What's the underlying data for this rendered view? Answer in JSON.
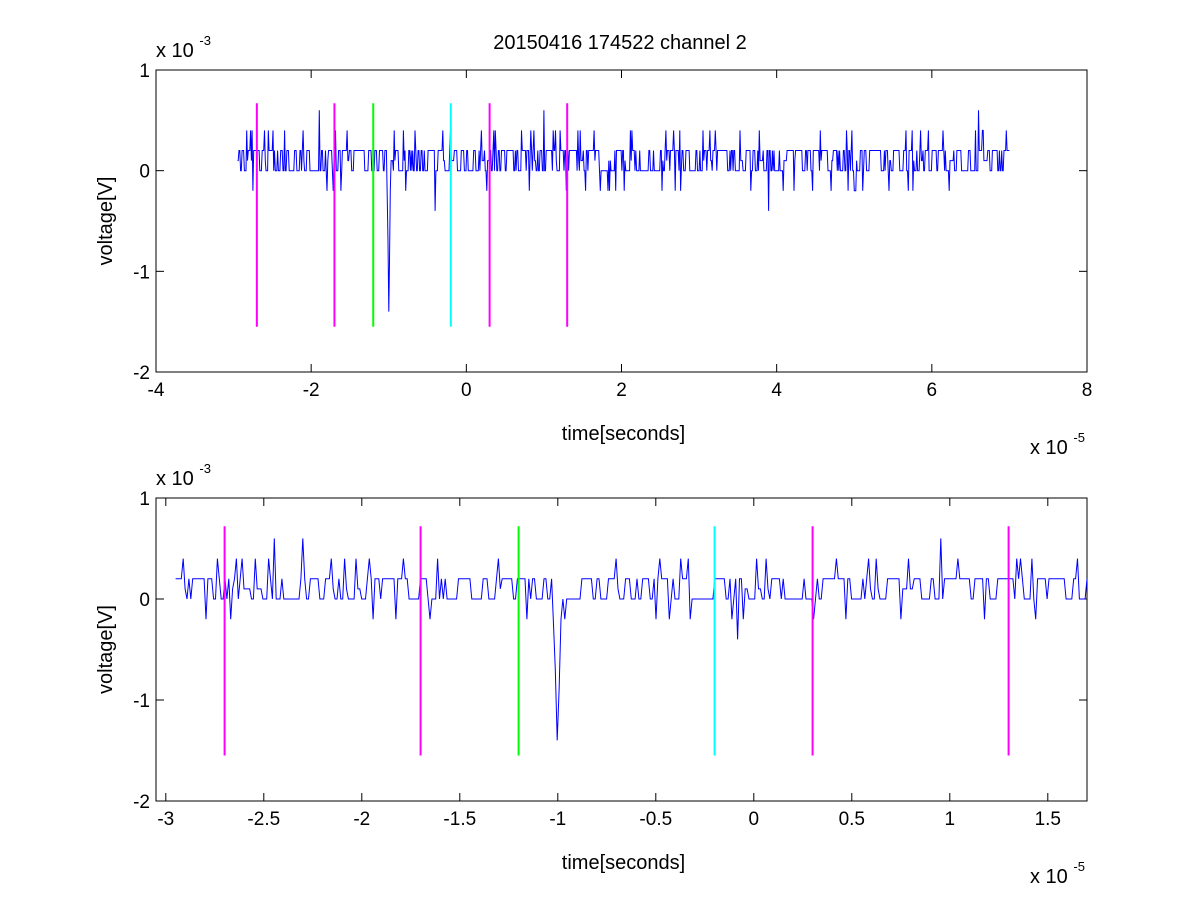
{
  "figure_title": "20150416 174522 channel 2",
  "chart_data": [
    {
      "type": "line",
      "title": "20150416 174522 channel 2",
      "xlabel": "time[seconds]",
      "ylabel": "voltage[V]",
      "x_exponent_label": "x 10",
      "x_exponent": "-5",
      "y_exponent_label": "x 10",
      "y_exponent": "-3",
      "xlim": [
        -4,
        8
      ],
      "ylim": [
        -2,
        1
      ],
      "xticks": [
        -4,
        -2,
        0,
        2,
        4,
        6,
        8
      ],
      "xtick_labels": [
        "-4",
        "-2",
        "0",
        "2",
        "4",
        "6",
        "8"
      ],
      "yticks": [
        -2,
        -1,
        0,
        1
      ],
      "ytick_labels": [
        "-2",
        "-1",
        "0",
        "1"
      ],
      "grid": false,
      "signal": {
        "color": "#0000ff",
        "x_range": [
          -2.95,
          7.0
        ],
        "baseline": 0.1,
        "noise_levels": [
          0.0,
          0.2
        ],
        "spikes": [
          {
            "x": -1.0,
            "y": -1.4
          },
          {
            "x": -0.4,
            "y": -0.4
          },
          {
            "x": 3.9,
            "y": -0.4
          },
          {
            "x": 6.6,
            "y": 0.6
          },
          {
            "x": 1.0,
            "y": 0.6
          },
          {
            "x": -1.9,
            "y": 0.6
          }
        ]
      },
      "markers": [
        {
          "x": -2.7,
          "color": "#ff00ff"
        },
        {
          "x": -1.7,
          "color": "#ff00ff"
        },
        {
          "x": -1.2,
          "color": "#00ff00"
        },
        {
          "x": -0.2,
          "color": "#00ffff"
        },
        {
          "x": 0.3,
          "color": "#ff00ff"
        },
        {
          "x": 1.3,
          "color": "#ff00ff"
        }
      ],
      "marker_y_range": [
        -1.55,
        0.67
      ]
    },
    {
      "type": "line",
      "xlabel": "time[seconds]",
      "ylabel": "voltage[V]",
      "x_exponent_label": "x 10",
      "x_exponent": "-5",
      "y_exponent_label": "x 10",
      "y_exponent": "-3",
      "xlim": [
        -3.05,
        1.7
      ],
      "ylim": [
        -2,
        1
      ],
      "xticks": [
        -3,
        -2.5,
        -2,
        -1.5,
        -1,
        -0.5,
        0,
        0.5,
        1,
        1.5
      ],
      "xtick_labels": [
        "-3",
        "-2.5",
        "-2",
        "-1.5",
        "-1",
        "-0.5",
        "0",
        "0.5",
        "1",
        "1.5"
      ],
      "yticks": [
        -2,
        -1,
        0,
        1
      ],
      "ytick_labels": [
        "-2",
        "-1",
        "0",
        "1"
      ],
      "grid": false,
      "signal": {
        "color": "#0000ff",
        "x_range": [
          -2.95,
          1.7
        ],
        "baseline": 0.1,
        "noise_levels": [
          0.0,
          0.2
        ],
        "spikes": [
          {
            "x": -1.0,
            "y": -1.4
          },
          {
            "x": -2.45,
            "y": 0.6
          },
          {
            "x": -2.3,
            "y": 0.6
          },
          {
            "x": 0.95,
            "y": 0.6
          },
          {
            "x": -0.08,
            "y": -0.4
          },
          {
            "x": -0.5,
            "y": -0.2
          }
        ]
      },
      "markers": [
        {
          "x": -2.7,
          "color": "#ff00ff"
        },
        {
          "x": -1.7,
          "color": "#ff00ff"
        },
        {
          "x": -1.2,
          "color": "#00ff00"
        },
        {
          "x": -0.2,
          "color": "#00ffff"
        },
        {
          "x": 0.3,
          "color": "#ff00ff"
        },
        {
          "x": 1.3,
          "color": "#ff00ff"
        }
      ],
      "marker_y_range": [
        -1.55,
        0.72
      ]
    }
  ]
}
